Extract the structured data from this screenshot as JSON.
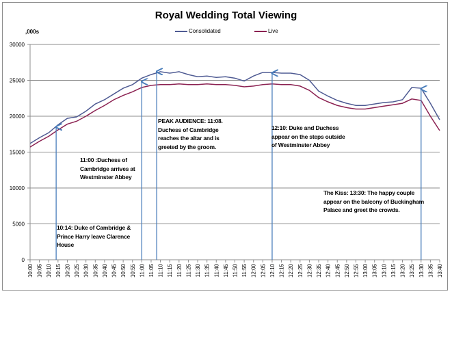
{
  "chart_data": {
    "type": "line",
    "title": "Royal Wedding Total Viewing",
    "ylabel": ",000s",
    "xlabel": "",
    "ylim": [
      0,
      30000
    ],
    "yticks": [
      "0",
      "5000",
      "10000",
      "15000",
      "20000",
      "25000",
      "30000"
    ],
    "grid": true,
    "legend_position": "top",
    "x": [
      "10:00",
      "10:05",
      "10:10",
      "10:15",
      "10:20",
      "10:25",
      "10:30",
      "10:35",
      "10:40",
      "10:45",
      "10:50",
      "10:55",
      "11:00",
      "11:05",
      "11:10",
      "11:15",
      "11:20",
      "11:25",
      "11:30",
      "11:35",
      "11:40",
      "11:45",
      "11:50",
      "11:55",
      "12:00",
      "12:05",
      "12:10",
      "12:15",
      "12:20",
      "12:25",
      "12:30",
      "12:35",
      "12:40",
      "12:45",
      "12:50",
      "12:55",
      "13:00",
      "13:05",
      "13:10",
      "13:15",
      "13:20",
      "13:25",
      "13:30",
      "13:35",
      "13:40"
    ],
    "series": [
      {
        "name": "Consolidated",
        "color": "#4F5B93",
        "values": [
          16200,
          17000,
          17700,
          18800,
          19700,
          19900,
          20700,
          21700,
          22300,
          23100,
          23900,
          24400,
          25300,
          25800,
          26200,
          26000,
          26200,
          25800,
          25500,
          25600,
          25400,
          25500,
          25300,
          24900,
          25600,
          26100,
          26100,
          26000,
          26000,
          25800,
          25000,
          23500,
          22800,
          22200,
          21800,
          21500,
          21500,
          21700,
          21900,
          22000,
          22300,
          24000,
          23900,
          21800,
          19500
        ]
      },
      {
        "name": "Live",
        "color": "#8B2252",
        "values": [
          15700,
          16500,
          17200,
          18100,
          18900,
          19300,
          20000,
          20800,
          21500,
          22300,
          22900,
          23400,
          24000,
          24300,
          24400,
          24400,
          24500,
          24400,
          24400,
          24500,
          24400,
          24400,
          24300,
          24100,
          24200,
          24400,
          24500,
          24400,
          24400,
          24200,
          23600,
          22600,
          22000,
          21500,
          21200,
          21000,
          21000,
          21200,
          21400,
          21600,
          21800,
          22400,
          22200,
          20000,
          18000
        ]
      }
    ],
    "annotations": [
      {
        "time_min": 14,
        "value": 18700,
        "text": "10:14: Duke of Cambridge & Prince Harry leave Clarence House"
      },
      {
        "time_min": 60,
        "value": 25000,
        "text": "11:00 :Duchess of Cambridge arrives at Westminster Abbey"
      },
      {
        "time_min": 68,
        "value": 26400,
        "text": "PEAK AUDIENCE: 11:08. Duchess of Cambridge reaches the altar  and is greeted by the groom."
      },
      {
        "time_min": 130,
        "value": 26200,
        "text": "12:10: Duke and Duchess appear on the steps outside of Westminster Abbey"
      },
      {
        "time_min": 210,
        "value": 24000,
        "text": "The Kiss: 13:30: The happy couple appear on the balcony of Buckingham Palace and greet the crowds."
      }
    ],
    "arrow_color": "#4A7EBB"
  }
}
